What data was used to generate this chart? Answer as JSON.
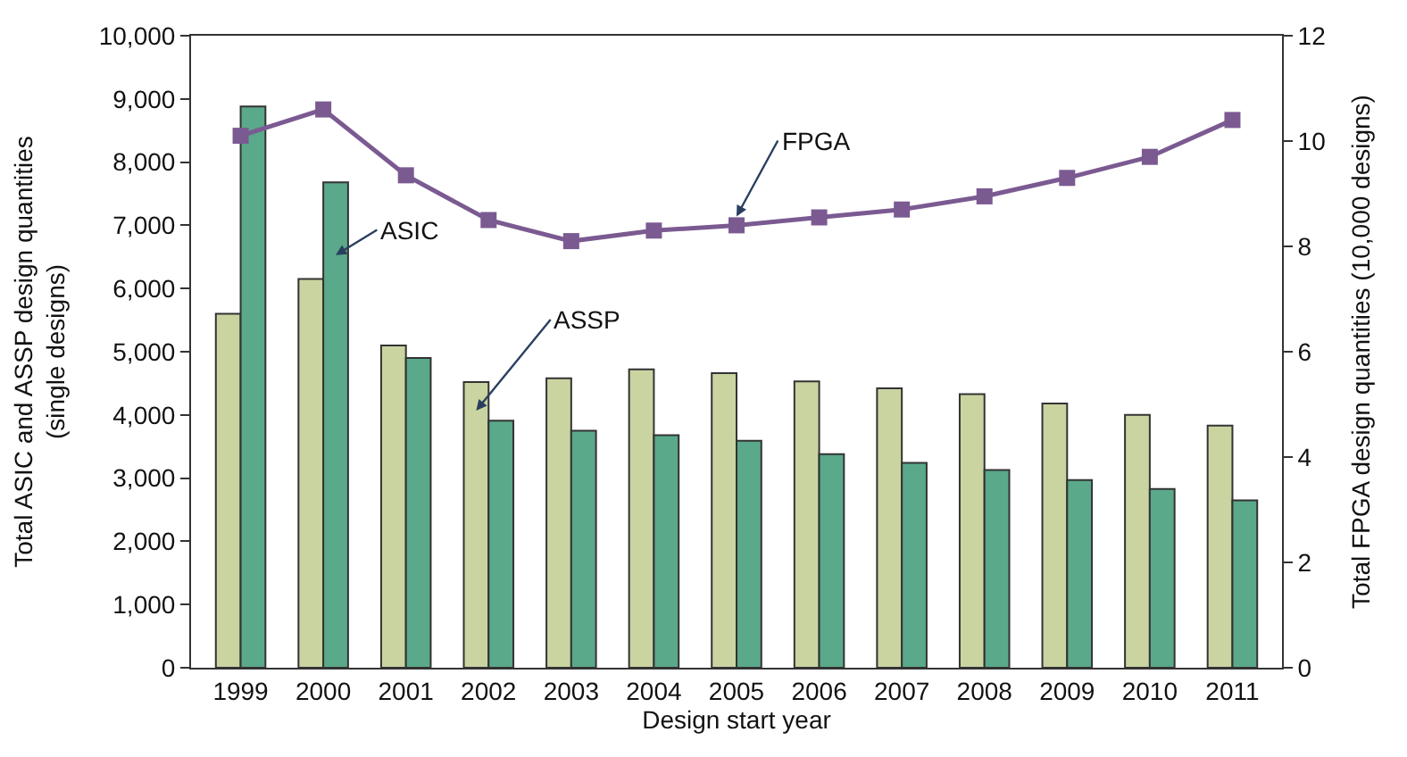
{
  "chart_data": {
    "type": "bar",
    "xlabel": "Design start year",
    "ylabel": "Total ASIC and ASSP design quantities\n(single designs)",
    "y2label": "Total FPGA design quantities (10,000 designs)",
    "categories": [
      "1999",
      "2000",
      "2001",
      "2002",
      "2003",
      "2004",
      "2005",
      "2006",
      "2007",
      "2008",
      "2009",
      "2010",
      "2011"
    ],
    "series": [
      {
        "name": "ASSP",
        "color": "#c9d4a1",
        "values": [
          5600,
          6150,
          5100,
          4520,
          4580,
          4720,
          4660,
          4530,
          4420,
          4330,
          4180,
          4000,
          3830
        ]
      },
      {
        "name": "ASIC",
        "color": "#5aa98a",
        "values": [
          8880,
          7680,
          4900,
          3910,
          3750,
          3680,
          3590,
          3380,
          3240,
          3130,
          2970,
          2830,
          2650
        ]
      },
      {
        "name": "FPGA",
        "type": "line",
        "axis": "y2",
        "color": "#7b5a92",
        "marker": "square",
        "values": [
          10.1,
          10.6,
          9.35,
          8.5,
          8.1,
          8.3,
          8.4,
          8.55,
          8.7,
          8.95,
          9.3,
          9.7,
          10.4
        ]
      }
    ],
    "ylim": [
      0,
      10000
    ],
    "yticks": [
      {
        "value": 0,
        "label": "0"
      },
      {
        "value": 1000,
        "label": "1,000"
      },
      {
        "value": 2000,
        "label": "2,000"
      },
      {
        "value": 3000,
        "label": "3,000"
      },
      {
        "value": 4000,
        "label": "4,000"
      },
      {
        "value": 5000,
        "label": "5,000"
      },
      {
        "value": 6000,
        "label": "6,000"
      },
      {
        "value": 7000,
        "label": "7,000"
      },
      {
        "value": 8000,
        "label": "8,000"
      },
      {
        "value": 9000,
        "label": "9,000"
      },
      {
        "value": 10000,
        "label": "10,000"
      }
    ],
    "y2lim": [
      0,
      12
    ],
    "y2ticks": [
      0,
      2,
      4,
      6,
      8,
      10,
      12
    ]
  }
}
